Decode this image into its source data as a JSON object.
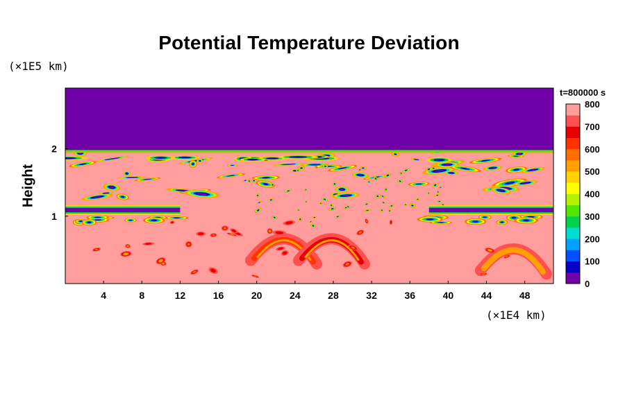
{
  "chart_data": {
    "type": "heatmap",
    "title": "Potential Temperature Deviation",
    "ylabel": "Height",
    "y_unit_label": "(×1E5 km)",
    "x_unit_label": "(×1E4 km)",
    "time_label": "t=800000 s",
    "xlim": [
      0,
      51
    ],
    "ylim": [
      0,
      2.9
    ],
    "x_ticks": [
      4,
      8,
      12,
      16,
      20,
      24,
      28,
      32,
      36,
      40,
      44,
      48
    ],
    "y_ticks": [
      1,
      2
    ],
    "colorbar": {
      "min": 0,
      "max": 800,
      "tick_labels": [
        "800",
        "700",
        "600",
        "500",
        "400",
        "300",
        "200",
        "100",
        "0"
      ],
      "tick_values": [
        800,
        700,
        600,
        500,
        400,
        300,
        200,
        100,
        0
      ],
      "colors": [
        "#7000a8",
        "#0000c8",
        "#0050ff",
        "#00a0ff",
        "#00dcd2",
        "#00d250",
        "#50e600",
        "#b4f000",
        "#ffff00",
        "#ffd200",
        "#ffa000",
        "#ff6e00",
        "#ff3200",
        "#e60000",
        "#ff5050",
        "#ff9c9c"
      ]
    },
    "features": {
      "upper_layer_value": 0,
      "upper_layer_bottom": 1.98,
      "background_value": 800,
      "inversion_band_height": 1.1,
      "inversion_band_x_ranges": [
        [
          0,
          12
        ],
        [
          38,
          51
        ]
      ],
      "warm_plumes": [
        {
          "x": 23,
          "y": 0.6,
          "value": 600
        },
        {
          "x": 28,
          "y": 0.6,
          "value": 650
        },
        {
          "x": 47,
          "y": 0.45,
          "value": 500
        }
      ]
    }
  }
}
